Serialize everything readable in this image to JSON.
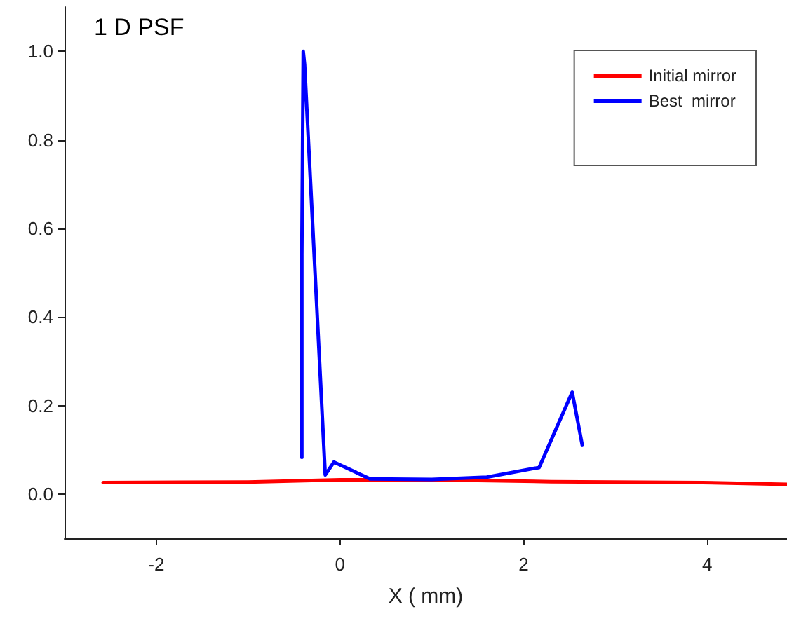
{
  "chart_data": {
    "type": "line",
    "title": "1 D PSF",
    "xlabel": "X ( mm)",
    "xlim": [
      -3,
      4.87
    ],
    "xticks": [
      -2,
      0,
      2,
      4
    ],
    "ylim": [
      -0.1,
      1.1
    ],
    "yticks": [
      {
        "value": 0,
        "label": "0.0"
      },
      {
        "value": 0.2,
        "label": "0.2"
      },
      {
        "value": 0.4,
        "label": "0.4"
      },
      {
        "value": 0.6,
        "label": "0.6"
      },
      {
        "value": 0.8,
        "label": "0.8"
      },
      {
        "value": 1,
        "label": "1.0"
      }
    ],
    "grid": false,
    "legend": "top right",
    "marker": "none",
    "line_style": "solid",
    "series": [
      {
        "name": "Initial mirror",
        "color": "#ff0000",
        "x": [
          -2.58,
          -1.0,
          0,
          1.0,
          2.3,
          3.95,
          4.87
        ],
        "values": [
          0.026,
          0.027,
          0.032,
          0.032,
          0.028,
          0.026,
          0.022
        ]
      },
      {
        "name": "Best  mirror",
        "color": "#0000ff",
        "x": [
          -0.415,
          -0.415,
          -0.4,
          -0.385,
          -0.16,
          -0.066,
          0.33,
          1.0,
          1.6,
          2.17,
          2.53,
          2.64
        ],
        "values": [
          0.083,
          0.54,
          1.0,
          0.97,
          0.043,
          0.072,
          0.034,
          0.033,
          0.038,
          0.06,
          0.23,
          0.11
        ]
      }
    ]
  }
}
